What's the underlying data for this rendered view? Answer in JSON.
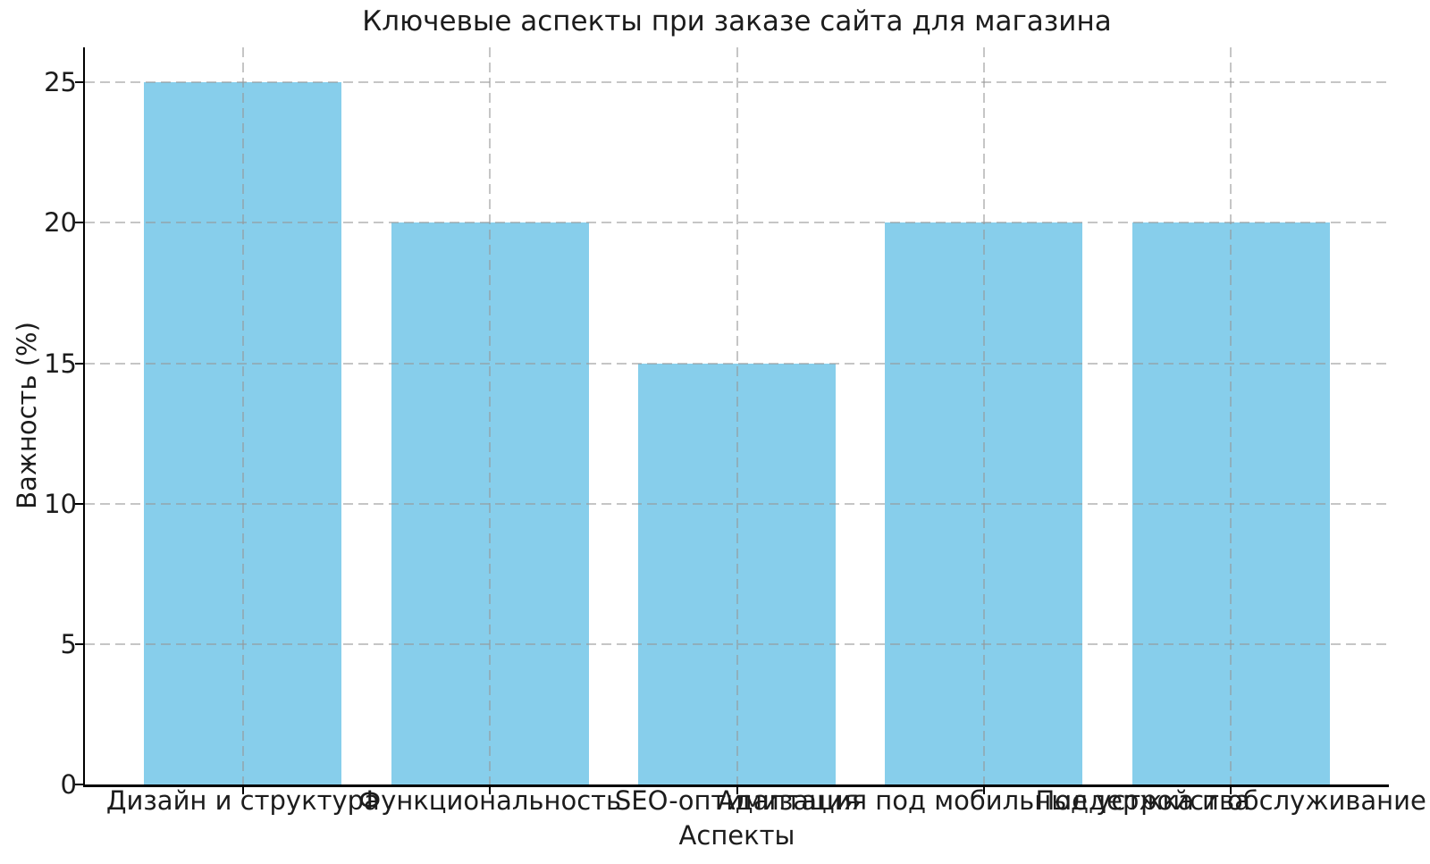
{
  "chart_data": {
    "type": "bar",
    "title": "Ключевые аспекты при заказе сайта для магазина",
    "xlabel": "Аспекты",
    "ylabel": "Важность (%)",
    "categories": [
      "Дизайн и структура",
      "Функциональность",
      "SEO-оптимизация",
      "Адаптация под мобильные устройства",
      "Поддержка и обслуживание"
    ],
    "values": [
      25,
      20,
      15,
      20,
      20
    ],
    "yticks": [
      0,
      5,
      10,
      15,
      20,
      25
    ],
    "ylim": [
      0,
      26.25
    ],
    "bar_color": "#87CEEB",
    "axis_color": "#000000",
    "text_color": "#1c1c1c",
    "grid": "dashed",
    "grid_color": "#D3D3D3",
    "grid_alpha": 0.7,
    "grid_above_bars": true,
    "spines": "left-bottom-only",
    "legend_position": "none"
  }
}
